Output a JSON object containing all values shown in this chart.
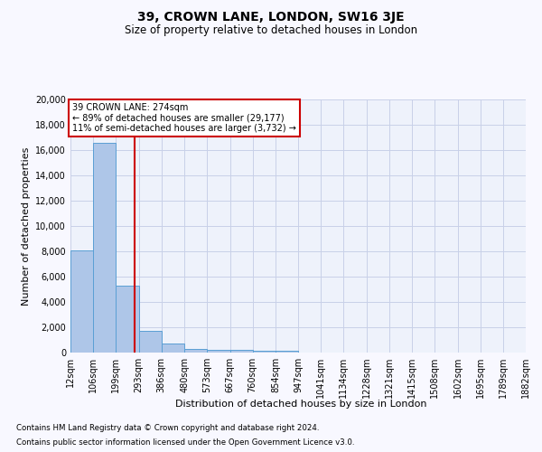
{
  "title": "39, CROWN LANE, LONDON, SW16 3JE",
  "subtitle": "Size of property relative to detached houses in London",
  "xlabel": "Distribution of detached houses by size in London",
  "ylabel": "Number of detached properties",
  "footnote1": "Contains HM Land Registry data © Crown copyright and database right 2024.",
  "footnote2": "Contains public sector information licensed under the Open Government Licence v3.0.",
  "annotation_title": "39 CROWN LANE: 274sqm",
  "annotation_line2": "← 89% of detached houses are smaller (29,177)",
  "annotation_line3": "11% of semi-detached houses are larger (3,732) →",
  "property_size": 274,
  "bin_edges": [
    12,
    106,
    199,
    293,
    386,
    480,
    573,
    667,
    760,
    854,
    947,
    1041,
    1134,
    1228,
    1321,
    1415,
    1508,
    1602,
    1695,
    1789,
    1882
  ],
  "bin_counts": [
    8100,
    16600,
    5300,
    1750,
    700,
    310,
    225,
    200,
    175,
    150,
    0,
    0,
    0,
    0,
    0,
    0,
    0,
    0,
    0,
    0
  ],
  "bar_color": "#aec6e8",
  "bar_edge_color": "#5a9fd4",
  "vline_color": "#cc0000",
  "vline_x": 274,
  "annotation_box_color": "#ffffff",
  "annotation_box_edge": "#cc0000",
  "bg_color": "#eef2fb",
  "grid_color": "#c8d0e8",
  "fig_bg": "#f8f8ff",
  "ylim": [
    0,
    20000
  ],
  "yticks": [
    0,
    2000,
    4000,
    6000,
    8000,
    10000,
    12000,
    14000,
    16000,
    18000,
    20000
  ]
}
